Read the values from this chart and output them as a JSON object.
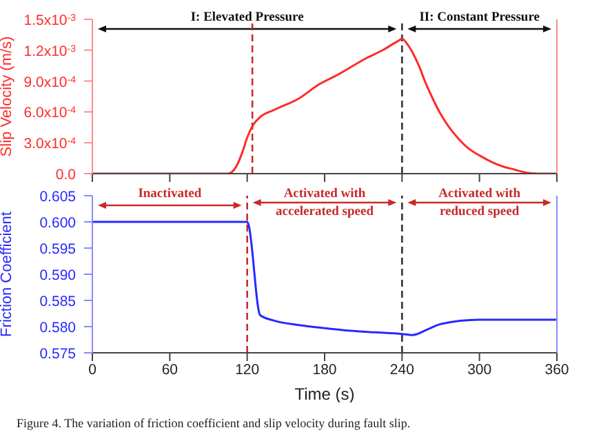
{
  "chart_data": [
    {
      "type": "line",
      "ylabel": "Slip Velocity (m/s)",
      "tick_labels": "y",
      "xlim": [
        0,
        360
      ],
      "xticks": [
        0,
        60,
        120,
        180,
        240,
        300,
        360
      ],
      "ylim": [
        0,
        0.0015
      ],
      "yticks": [
        {
          "value": 0,
          "label": "0.0"
        },
        {
          "value": 0.0003,
          "label": "3.0x10$^{-4}$"
        },
        {
          "value": 0.0006,
          "label": "6.0x10$^{-4}$"
        },
        {
          "value": 0.0009,
          "label": "9.0x10$^{-4}$"
        },
        {
          "value": 0.0012,
          "label": "1.2x10$^{-3}$"
        },
        {
          "value": 0.0015,
          "label": "1.5x10$^{-3}$"
        }
      ],
      "x": [
        0,
        60,
        100,
        105,
        112,
        116,
        120,
        125,
        130,
        141,
        160,
        176,
        190,
        212,
        225,
        237,
        240,
        244,
        248,
        253,
        258,
        263,
        269,
        276,
        283,
        292,
        301,
        310,
        318,
        327,
        336,
        345,
        360
      ],
      "series": [
        {
          "color": "#ff2a2a",
          "values": [
            0,
            0,
            0,
            0,
            8e-05,
            0.0002,
            0.00035,
            0.00048,
            0.00055,
            0.00062,
            0.00073,
            0.00087,
            0.00096,
            0.00112,
            0.0012,
            0.00129,
            0.00131,
            0.00126,
            0.00118,
            0.00105,
            0.00089,
            0.00075,
            0.0006,
            0.00046,
            0.00035,
            0.00024,
            0.00017,
            0.00011,
            7e-05,
            4e-05,
            1e-05,
            0,
            0
          ]
        }
      ],
      "ref_lines": [
        {
          "axis": "x",
          "value": 124,
          "color": "#c82a2a",
          "line_style": "dashed"
        },
        {
          "axis": "x",
          "value": 240,
          "color": "#333333",
          "line_style": "dashed"
        }
      ],
      "annotations": [
        "I: Elevated Pressure",
        "II: Constant Pressure"
      ]
    },
    {
      "type": "line",
      "ylabel": "Friction Coefficient",
      "xlabel": "Time (s)",
      "xlim": [
        0,
        360
      ],
      "xticks": [
        0,
        60,
        120,
        180,
        240,
        300,
        360
      ],
      "ylim": [
        0.575,
        0.605
      ],
      "yticks": [
        {
          "value": 0.575,
          "label": "0.575"
        },
        {
          "value": 0.58,
          "label": "0.580"
        },
        {
          "value": 0.585,
          "label": "0.585"
        },
        {
          "value": 0.59,
          "label": "0.590"
        },
        {
          "value": 0.595,
          "label": "0.595"
        },
        {
          "value": 0.6,
          "label": "0.600"
        },
        {
          "value": 0.605,
          "label": "0.605"
        }
      ],
      "x": [
        0,
        60,
        120,
        121,
        130,
        140,
        160,
        180,
        200,
        220,
        240,
        248,
        260,
        270,
        300,
        330,
        360
      ],
      "series": [
        {
          "color": "#2828ff",
          "values": [
            0.6,
            0.6,
            0.6,
            0.5995,
            0.5822,
            0.5812,
            0.5803,
            0.5797,
            0.5792,
            0.5789,
            0.5786,
            0.5784,
            0.5795,
            0.5805,
            0.5813,
            0.5813,
            0.5813
          ]
        }
      ],
      "ref_lines": [
        {
          "axis": "x",
          "value": 120,
          "color": "#c82a2a",
          "line_style": "dashed"
        },
        {
          "axis": "x",
          "value": 240,
          "color": "#333333",
          "line_style": "dashed"
        }
      ],
      "annotations": [
        "Inactivated",
        "Activated with\naccelerated speed",
        "Activated with\nreduced speed",
        "Figure 4.  The variation of friction coefficient and slip velocity during fault slip."
      ]
    }
  ]
}
